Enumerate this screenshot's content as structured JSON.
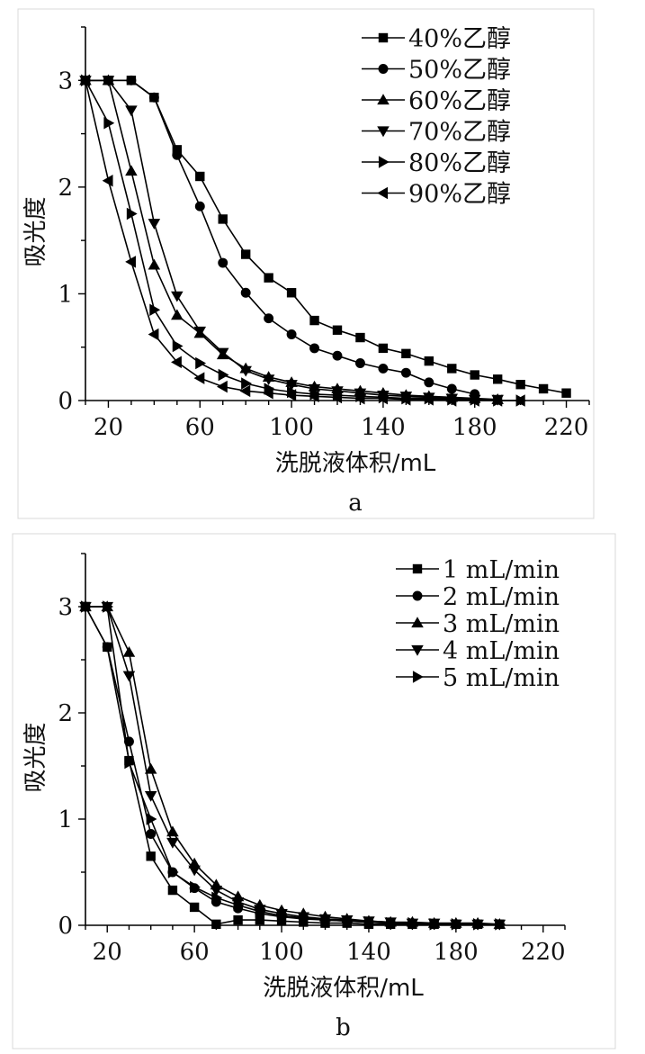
{
  "chart_data": [
    {
      "panel": "a",
      "type": "line",
      "caption": "a",
      "xlabel": "洗脱液体积/mL",
      "ylabel": "吸光度",
      "xlim": [
        10,
        230
      ],
      "ylim": [
        0,
        3.5
      ],
      "xticks": [
        20,
        60,
        100,
        140,
        180,
        220
      ],
      "yticks": [
        0,
        1,
        2,
        3
      ],
      "grid": false,
      "legend": "top-right",
      "series": [
        {
          "name": "40%乙醇",
          "marker": "square",
          "x": [
            10,
            20,
            30,
            40,
            50,
            60,
            70,
            80,
            90,
            100,
            110,
            120,
            130,
            140,
            150,
            160,
            170,
            180,
            190,
            200,
            210,
            220
          ],
          "y": [
            3.0,
            3.0,
            3.0,
            2.84,
            2.35,
            2.1,
            1.7,
            1.37,
            1.15,
            1.01,
            0.75,
            0.66,
            0.59,
            0.49,
            0.44,
            0.37,
            0.3,
            0.24,
            0.2,
            0.15,
            0.11,
            0.07
          ]
        },
        {
          "name": "50%乙醇",
          "marker": "circle",
          "x": [
            10,
            20,
            30,
            40,
            50,
            60,
            70,
            80,
            90,
            100,
            110,
            120,
            130,
            140,
            150,
            160,
            170,
            180
          ],
          "y": [
            3.0,
            3.0,
            3.0,
            2.84,
            2.3,
            1.82,
            1.29,
            1.01,
            0.77,
            0.62,
            0.49,
            0.42,
            0.35,
            0.3,
            0.26,
            0.17,
            0.11,
            0.06
          ]
        },
        {
          "name": "60%乙醇",
          "marker": "triangle-up",
          "x": [
            10,
            20,
            30,
            40,
            50,
            60,
            70,
            80,
            90,
            100,
            110,
            120,
            130,
            140,
            150,
            160,
            170,
            180,
            190
          ],
          "y": [
            3.0,
            3.0,
            2.15,
            1.27,
            0.8,
            0.63,
            0.43,
            0.3,
            0.22,
            0.17,
            0.13,
            0.11,
            0.09,
            0.07,
            0.05,
            0.04,
            0.03,
            0.02,
            0.01
          ]
        },
        {
          "name": "70%乙醇",
          "marker": "triangle-down",
          "x": [
            10,
            20,
            30,
            40,
            50,
            60,
            70,
            80,
            90,
            100,
            110,
            120,
            130,
            140,
            150,
            160,
            170,
            180,
            190
          ],
          "y": [
            3.0,
            3.0,
            2.72,
            1.66,
            0.98,
            0.65,
            0.45,
            0.28,
            0.2,
            0.15,
            0.11,
            0.09,
            0.07,
            0.05,
            0.04,
            0.03,
            0.02,
            0.01,
            0.01
          ]
        },
        {
          "name": "80%乙醇",
          "marker": "triangle-right",
          "x": [
            10,
            20,
            30,
            40,
            50,
            60,
            70,
            80,
            90,
            100,
            110,
            120,
            130,
            140,
            150,
            160,
            170,
            180,
            190,
            200
          ],
          "y": [
            3.0,
            2.6,
            1.75,
            0.85,
            0.51,
            0.35,
            0.24,
            0.16,
            0.11,
            0.08,
            0.06,
            0.05,
            0.04,
            0.03,
            0.02,
            0.02,
            0.01,
            0.01,
            0.0,
            0.0
          ]
        },
        {
          "name": "90%乙醇",
          "marker": "triangle-left",
          "x": [
            10,
            20,
            30,
            40,
            50,
            60,
            70,
            80,
            90,
            100,
            110,
            120,
            130,
            140,
            150,
            160,
            170,
            180,
            190,
            200
          ],
          "y": [
            3.0,
            2.06,
            1.3,
            0.62,
            0.36,
            0.21,
            0.13,
            0.09,
            0.07,
            0.05,
            0.04,
            0.03,
            0.02,
            0.02,
            0.01,
            0.01,
            0.0,
            0.0,
            0.0,
            0.0
          ]
        }
      ]
    },
    {
      "panel": "b",
      "type": "line",
      "caption": "b",
      "xlabel": "洗脱液体积/mL",
      "ylabel": "吸光度",
      "xlim": [
        10,
        230
      ],
      "ylim": [
        0,
        3.5
      ],
      "xticks": [
        20,
        60,
        100,
        140,
        180,
        220
      ],
      "yticks": [
        0,
        1,
        2,
        3
      ],
      "grid": false,
      "legend": "top-right",
      "series": [
        {
          "name": "1 mL/min",
          "marker": "square",
          "x": [
            10,
            20,
            30,
            40,
            50,
            60,
            70,
            80,
            90,
            100,
            110,
            120,
            130,
            140,
            150,
            160,
            170,
            180,
            190,
            200
          ],
          "y": [
            3.0,
            2.62,
            1.55,
            0.65,
            0.33,
            0.17,
            0.01,
            0.05,
            0.05,
            0.04,
            0.03,
            0.02,
            0.02,
            0.01,
            0.01,
            0.01,
            0.01,
            0.01,
            0.01,
            0.01
          ]
        },
        {
          "name": "2 mL/min",
          "marker": "circle",
          "x": [
            10,
            20,
            30,
            40,
            50,
            60,
            70,
            80,
            90,
            100,
            110,
            120,
            130,
            140,
            150,
            160,
            170,
            180,
            190,
            200
          ],
          "y": [
            3.0,
            2.62,
            1.73,
            0.86,
            0.5,
            0.35,
            0.22,
            0.16,
            0.11,
            0.08,
            0.06,
            0.05,
            0.04,
            0.03,
            0.02,
            0.02,
            0.01,
            0.01,
            0.01,
            0.01
          ]
        },
        {
          "name": "3 mL/min",
          "marker": "triangle-up",
          "x": [
            10,
            20,
            30,
            40,
            50,
            60,
            70,
            80,
            90,
            100,
            110,
            120,
            130,
            140,
            150,
            160,
            170,
            180,
            190,
            200
          ],
          "y": [
            3.0,
            3.0,
            2.57,
            1.47,
            0.88,
            0.58,
            0.38,
            0.27,
            0.19,
            0.14,
            0.11,
            0.08,
            0.06,
            0.04,
            0.03,
            0.03,
            0.02,
            0.02,
            0.02,
            0.01
          ]
        },
        {
          "name": "4 mL/min",
          "marker": "triangle-down",
          "x": [
            10,
            20,
            30,
            40,
            50,
            60,
            70,
            80,
            90,
            100,
            110,
            120,
            130,
            140,
            150,
            160,
            170,
            180,
            190,
            200
          ],
          "y": [
            3.0,
            3.0,
            2.35,
            1.22,
            0.78,
            0.52,
            0.33,
            0.22,
            0.15,
            0.11,
            0.08,
            0.06,
            0.05,
            0.04,
            0.03,
            0.02,
            0.02,
            0.01,
            0.01,
            0.01
          ]
        },
        {
          "name": "5 mL/min",
          "marker": "triangle-right",
          "x": [
            10,
            20,
            30,
            40,
            50,
            60,
            70,
            80,
            90,
            100,
            110,
            120,
            130,
            140,
            150,
            160,
            170,
            180,
            190,
            200
          ],
          "y": [
            3.0,
            3.0,
            1.53,
            1.0,
            0.5,
            0.36,
            0.26,
            0.19,
            0.13,
            0.09,
            0.07,
            0.05,
            0.04,
            0.03,
            0.02,
            0.02,
            0.01,
            0.01,
            0.01,
            0.01
          ]
        }
      ]
    }
  ]
}
